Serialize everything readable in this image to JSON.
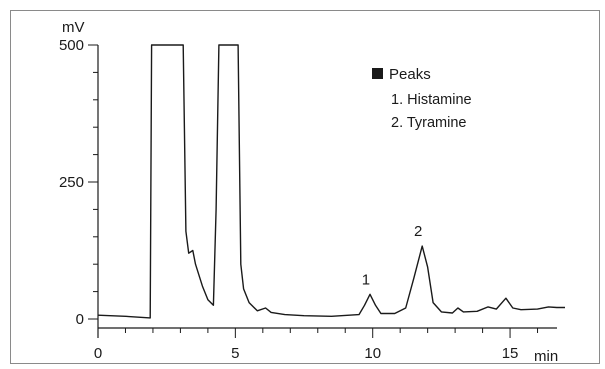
{
  "chart_data": {
    "type": "line",
    "y_unit": "mV",
    "x_unit": "min",
    "xlim": [
      0,
      17
    ],
    "ylim": [
      0,
      500
    ],
    "x_ticks": [
      0,
      5,
      10,
      15
    ],
    "y_ticks": [
      0,
      250,
      500
    ],
    "x_tick_labels": [
      "0",
      "5",
      "10",
      "15"
    ],
    "y_tick_labels": [
      "0",
      "250",
      "500"
    ],
    "legend": {
      "title": "Peaks",
      "items": [
        "1. Histamine",
        "2. Tyramine"
      ],
      "placement": "top-right"
    },
    "peak_labels": [
      {
        "label": "1",
        "x": 9.9,
        "y": 45
      },
      {
        "label": "2",
        "x": 11.8,
        "y": 133
      }
    ],
    "series": [
      {
        "values": [
          [
            0,
            7
          ],
          [
            1.0,
            5
          ],
          [
            1.9,
            2
          ],
          [
            1.95,
            500
          ],
          [
            3.1,
            500
          ],
          [
            3.2,
            160
          ],
          [
            3.3,
            120
          ],
          [
            3.45,
            125
          ],
          [
            3.55,
            100
          ],
          [
            3.8,
            60
          ],
          [
            4.0,
            35
          ],
          [
            4.2,
            25
          ],
          [
            4.3,
            200
          ],
          [
            4.4,
            500
          ],
          [
            5.1,
            500
          ],
          [
            5.2,
            100
          ],
          [
            5.3,
            55
          ],
          [
            5.5,
            30
          ],
          [
            5.8,
            15
          ],
          [
            6.1,
            20
          ],
          [
            6.3,
            12
          ],
          [
            6.8,
            8
          ],
          [
            7.5,
            6
          ],
          [
            8.5,
            5
          ],
          [
            9.5,
            8
          ],
          [
            9.7,
            25
          ],
          [
            9.9,
            45
          ],
          [
            10.1,
            25
          ],
          [
            10.3,
            10
          ],
          [
            10.8,
            10
          ],
          [
            11.2,
            20
          ],
          [
            11.5,
            75
          ],
          [
            11.8,
            133
          ],
          [
            12.0,
            95
          ],
          [
            12.2,
            30
          ],
          [
            12.5,
            13
          ],
          [
            12.9,
            11
          ],
          [
            13.1,
            20
          ],
          [
            13.3,
            13
          ],
          [
            13.8,
            14
          ],
          [
            14.2,
            22
          ],
          [
            14.5,
            18
          ],
          [
            14.85,
            38
          ],
          [
            15.1,
            20
          ],
          [
            15.4,
            17
          ],
          [
            16.0,
            18
          ],
          [
            16.4,
            22
          ],
          [
            16.7,
            21
          ],
          [
            17.0,
            21
          ]
        ]
      }
    ]
  }
}
